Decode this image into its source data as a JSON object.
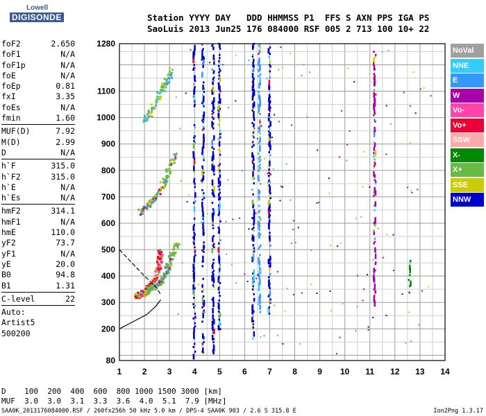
{
  "logo": {
    "line1": "Lowell",
    "line2": "DIGISONDE"
  },
  "header": {
    "row1": "Station YYYY DAY   DDD HHMMSS P1  FFS S AXN PPS IGA PS",
    "row2": "SaoLuis 2013 Jun25 176 084000 RSF 005 2 713 100 10+ 22"
  },
  "params": {
    "group1": [
      {
        "name": "foF2",
        "value": "2.650"
      },
      {
        "name": "foF1",
        "value": "N/A"
      },
      {
        "name": "foF1p",
        "value": "N/A"
      },
      {
        "name": "foE",
        "value": "N/A"
      },
      {
        "name": "foEp",
        "value": "0.81"
      },
      {
        "name": "fxI",
        "value": "3.35"
      },
      {
        "name": "foEs",
        "value": "N/A"
      },
      {
        "name": "fmin",
        "value": "1.60"
      }
    ],
    "group2": [
      {
        "name": "MUF(D)",
        "value": "7.92"
      },
      {
        "name": "M(D)",
        "value": "2.99"
      },
      {
        "name": "D",
        "value": "N/A"
      }
    ],
    "group3": [
      {
        "name": "h`F",
        "value": "315.0"
      },
      {
        "name": "h`F2",
        "value": "315.0"
      },
      {
        "name": "h`E",
        "value": "N/A"
      },
      {
        "name": "h`Es",
        "value": "N/A"
      }
    ],
    "group4": [
      {
        "name": "hmF2",
        "value": "314.1"
      },
      {
        "name": "hmF1",
        "value": "N/A"
      },
      {
        "name": "hmE",
        "value": "110.0"
      },
      {
        "name": "yF2",
        "value": "73.7"
      },
      {
        "name": "yF1",
        "value": "N/A"
      },
      {
        "name": "yE",
        "value": "20.0"
      },
      {
        "name": "B0",
        "value": "94.8"
      },
      {
        "name": "B1",
        "value": "1.31"
      }
    ],
    "clevel": {
      "name": "C-level",
      "value": "22"
    },
    "auto": [
      "Auto:",
      "Artist5",
      "500200"
    ]
  },
  "legend": [
    {
      "label": "NoVal",
      "color": "#a0a0a0"
    },
    {
      "label": "NNE",
      "color": "#33ccff"
    },
    {
      "label": "E",
      "color": "#3399ff"
    },
    {
      "label": "W",
      "color": "#aa00aa"
    },
    {
      "label": "Vo-",
      "color": "#ff44aa"
    },
    {
      "label": "Vo+",
      "color": "#ee0033"
    },
    {
      "label": "SSW",
      "color": "#ffaaaa"
    },
    {
      "label": "X-",
      "color": "#008800"
    },
    {
      "label": "X+",
      "color": "#66bb44"
    },
    {
      "label": "SSE",
      "color": "#cccc00"
    },
    {
      "label": "NNW",
      "color": "#0000cc"
    }
  ],
  "muf_table": {
    "row1": "D    100  200  400  600  800 1000 1500 3000 [km]",
    "row2": "MUF  3.0  3.0  3.1  3.3  3.6  4.0  5.1  7.9 [MHz]"
  },
  "footer": {
    "left": "SAA0K_2013176084000.RSF / 260fx256h 50 kHz 5.0 km / DPS-4 SAA0K 903 / 2.6 S 315.8 E",
    "right": "Ion2Png 1.3.17"
  },
  "chart_data": {
    "type": "scatter",
    "xlim": [
      1,
      14
    ],
    "ylim": [
      80,
      1280
    ],
    "x_ticks": [
      1,
      2,
      3,
      4,
      5,
      6,
      7,
      8,
      9,
      10,
      11,
      12,
      13,
      14
    ],
    "y_ticks": [
      80,
      200,
      300,
      400,
      500,
      600,
      700,
      800,
      900,
      1000,
      1100,
      1280
    ],
    "grid": true,
    "traces": [
      {
        "name": "O-trace F2",
        "color": "#ee0033",
        "points": [
          [
            1.7,
            320
          ],
          [
            1.9,
            330
          ],
          [
            2.1,
            345
          ],
          [
            2.3,
            365
          ],
          [
            2.5,
            400
          ],
          [
            2.6,
            450
          ],
          [
            2.65,
            500
          ]
        ]
      },
      {
        "name": "X-trace F2",
        "color": "#66bb44",
        "points": [
          [
            2.0,
            340
          ],
          [
            2.4,
            360
          ],
          [
            2.7,
            380
          ],
          [
            2.9,
            420
          ],
          [
            3.1,
            470
          ],
          [
            3.3,
            520
          ]
        ]
      },
      {
        "name": "second hop",
        "color": "#66bb44",
        "points": [
          [
            1.8,
            640
          ],
          [
            2.2,
            670
          ],
          [
            2.6,
            720
          ],
          [
            2.9,
            780
          ],
          [
            3.2,
            860
          ]
        ]
      },
      {
        "name": "third hop",
        "color": "#33ccff",
        "points": [
          [
            2.0,
            980
          ],
          [
            2.4,
            1050
          ],
          [
            2.8,
            1120
          ],
          [
            3.1,
            1180
          ]
        ]
      }
    ],
    "profile": {
      "color": "#000000",
      "points": [
        [
          1.0,
          200
        ],
        [
          1.3,
          215
        ],
        [
          1.7,
          235
        ],
        [
          2.1,
          255
        ],
        [
          2.45,
          285
        ],
        [
          2.65,
          310
        ]
      ]
    },
    "profile_dashed": {
      "color": "#000000",
      "points": [
        [
          1.0,
          500
        ],
        [
          1.5,
          450
        ],
        [
          2.0,
          400
        ],
        [
          2.45,
          360
        ],
        [
          2.65,
          330
        ]
      ]
    },
    "interference_columns": [
      {
        "x": 4.0,
        "from": 100,
        "to": 1280,
        "color": "#0000cc"
      },
      {
        "x": 4.35,
        "from": 100,
        "to": 1280,
        "color": "#0000cc"
      },
      {
        "x": 4.75,
        "from": 100,
        "to": 1280,
        "color": "#0000cc"
      },
      {
        "x": 5.0,
        "from": 180,
        "to": 1280,
        "color": "#0000cc"
      },
      {
        "x": 6.35,
        "from": 150,
        "to": 1280,
        "color": "#0000cc"
      },
      {
        "x": 6.6,
        "from": 250,
        "to": 1280,
        "color": "#3399ff"
      },
      {
        "x": 7.0,
        "from": 250,
        "to": 1280,
        "color": "#0000cc"
      },
      {
        "x": 11.2,
        "from": 300,
        "to": 1250,
        "color": "#aa00aa"
      },
      {
        "x": 12.6,
        "from": 330,
        "to": 460,
        "color": "#008800"
      }
    ]
  }
}
